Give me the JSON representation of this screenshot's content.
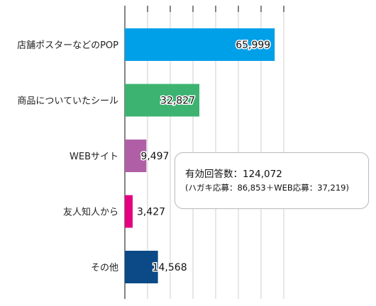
{
  "chart_data": {
    "type": "bar",
    "orientation": "horizontal",
    "categories": [
      "店舗ポスターなどのPOP",
      "商品についていたシール",
      "WEBサイト",
      "友人知人から",
      "その他"
    ],
    "values": [
      65999,
      32827,
      9497,
      3427,
      14568
    ],
    "value_labels": [
      "65,999",
      "32,827",
      "9,497",
      "3,427",
      "14,568"
    ],
    "colors": [
      "#00a0e9",
      "#3cb371",
      "#b05fa6",
      "#e4007f",
      "#0b4a86"
    ],
    "xlim": [
      0,
      70000
    ],
    "grid": true,
    "title": "",
    "xlabel": "",
    "ylabel": ""
  },
  "note": {
    "line1": "有効回答数：124,072",
    "line2": "(ハガキ応募：86,853＋WEB応募：37,219)"
  }
}
